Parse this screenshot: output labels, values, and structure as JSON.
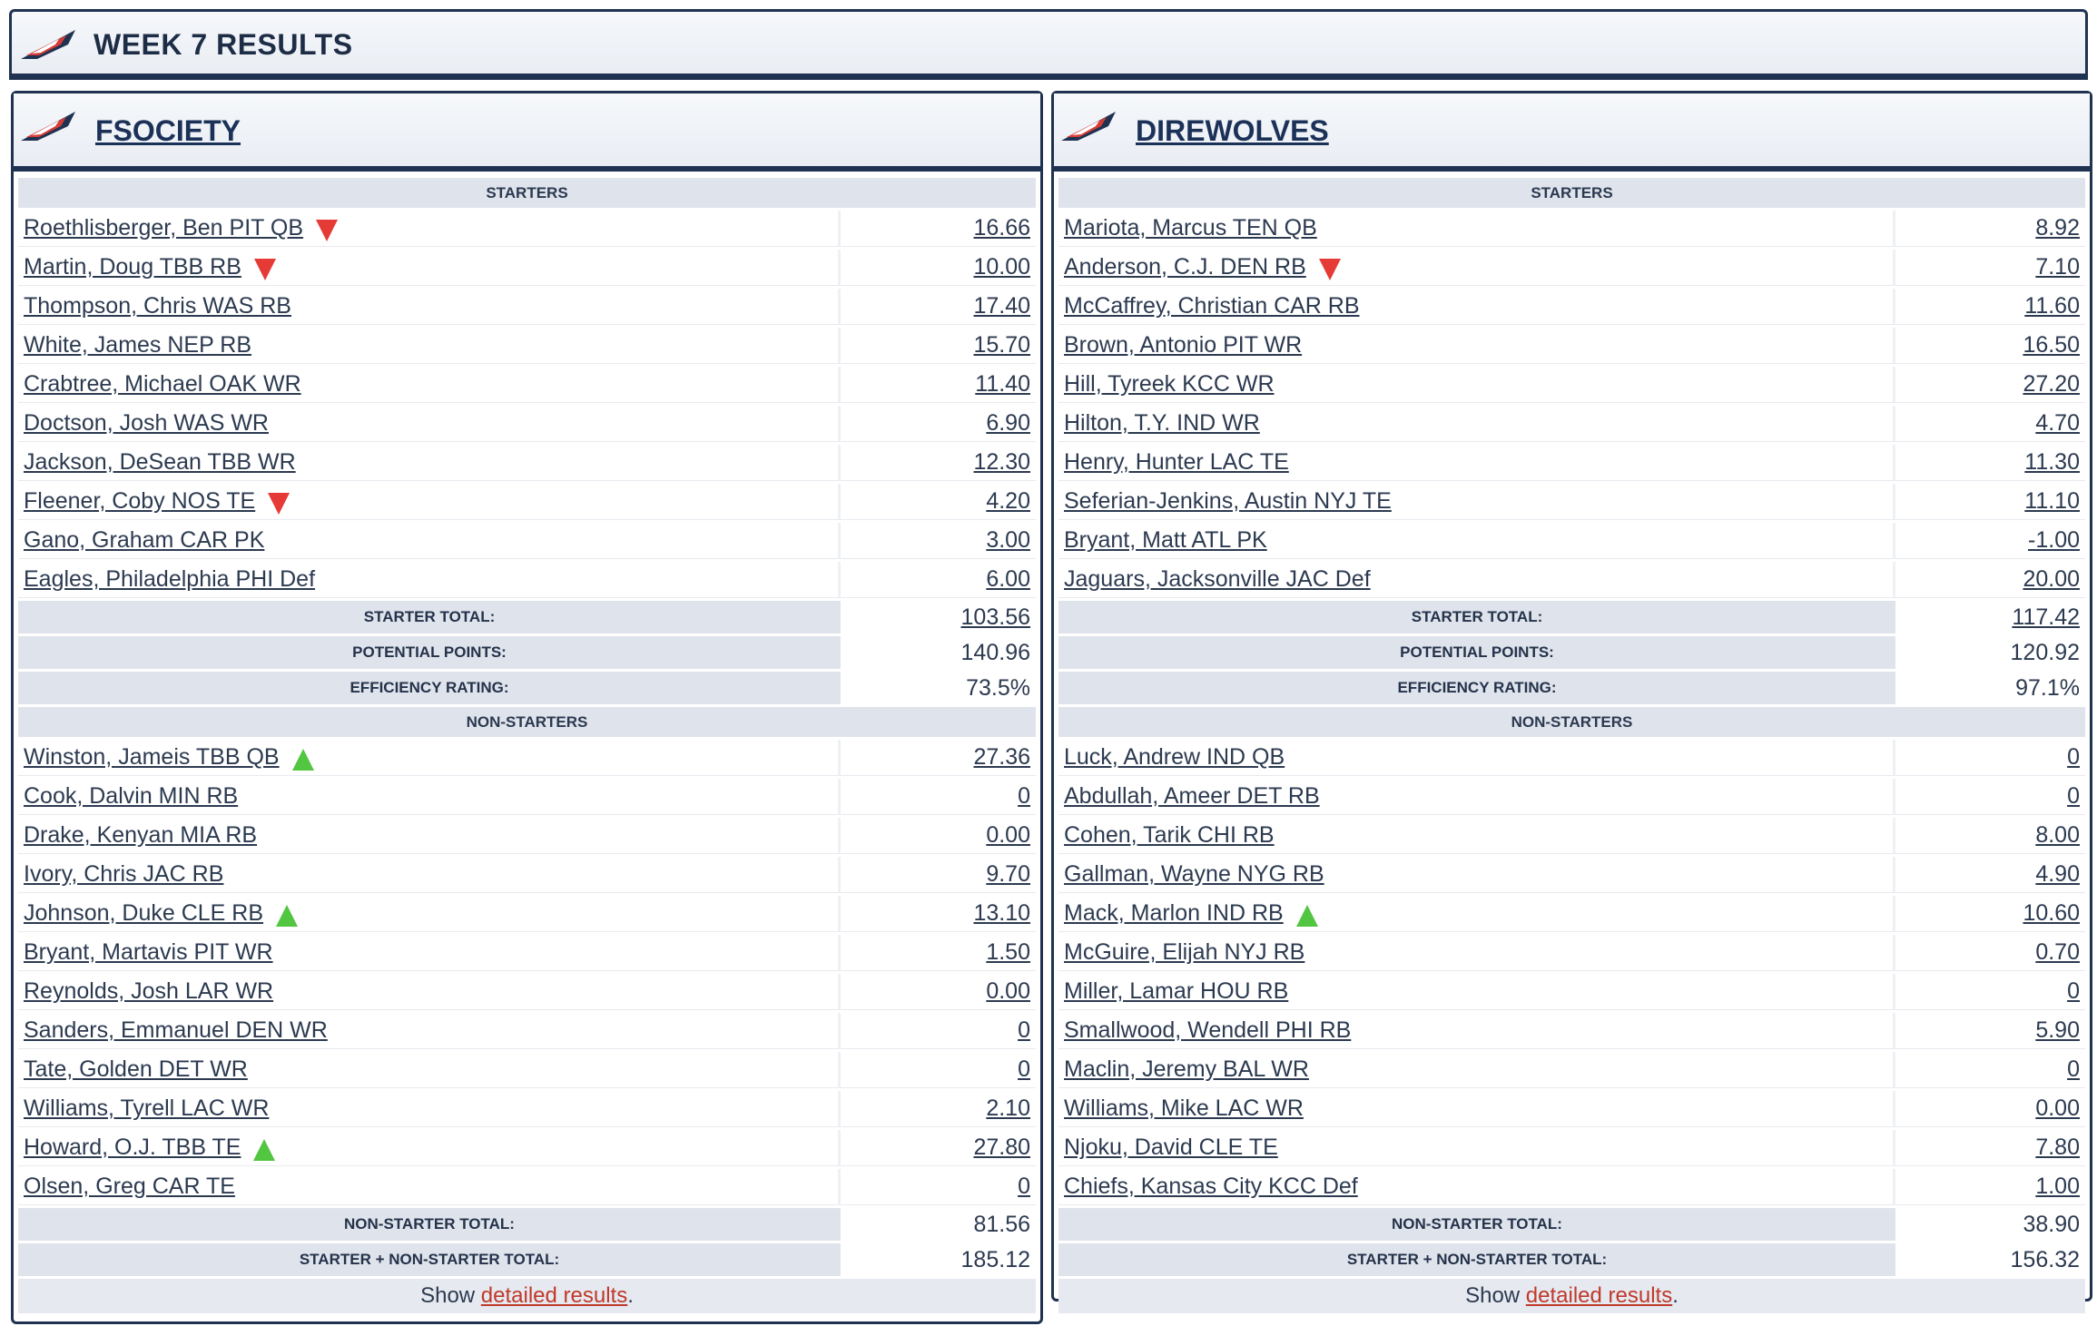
{
  "page": {
    "title": "WEEK 7 RESULTS"
  },
  "colors": {
    "navy": "#1f3252",
    "section_bg": "#dfe4ec",
    "down_arrow": "#e53a35",
    "up_arrow": "#52c640",
    "link_red": "#c0392b"
  },
  "teams": [
    {
      "name": "FSOCIETY",
      "starters_label": "STARTERS",
      "starters": [
        {
          "player": "Roethlisberger, Ben PIT QB",
          "pts": "16.66",
          "arrow": "down"
        },
        {
          "player": "Martin, Doug TBB RB",
          "pts": "10.00",
          "arrow": "down"
        },
        {
          "player": "Thompson, Chris WAS RB",
          "pts": "17.40",
          "arrow": ""
        },
        {
          "player": "White, James NEP RB",
          "pts": "15.70",
          "arrow": ""
        },
        {
          "player": "Crabtree, Michael OAK WR",
          "pts": "11.40",
          "arrow": ""
        },
        {
          "player": "Doctson, Josh WAS WR",
          "pts": "6.90",
          "arrow": ""
        },
        {
          "player": "Jackson, DeSean TBB WR",
          "pts": "12.30",
          "arrow": ""
        },
        {
          "player": "Fleener, Coby NOS TE",
          "pts": "4.20",
          "arrow": "down"
        },
        {
          "player": "Gano, Graham CAR PK",
          "pts": "3.00",
          "arrow": ""
        },
        {
          "player": "Eagles, Philadelphia PHI Def",
          "pts": "6.00",
          "arrow": ""
        }
      ],
      "starter_summary": [
        {
          "label": "STARTER TOTAL:",
          "value": "103.56",
          "link": true
        },
        {
          "label": "POTENTIAL POINTS:",
          "value": "140.96",
          "link": false
        },
        {
          "label": "EFFICIENCY RATING:",
          "value": "73.5%",
          "link": false
        }
      ],
      "nonstarters_label": "NON-STARTERS",
      "nonstarters": [
        {
          "player": "Winston, Jameis TBB QB",
          "pts": "27.36",
          "arrow": "up"
        },
        {
          "player": "Cook, Dalvin MIN RB",
          "pts": "0",
          "arrow": ""
        },
        {
          "player": "Drake, Kenyan MIA RB",
          "pts": "0.00",
          "arrow": ""
        },
        {
          "player": "Ivory, Chris JAC RB",
          "pts": "9.70",
          "arrow": ""
        },
        {
          "player": "Johnson, Duke CLE RB",
          "pts": "13.10",
          "arrow": "up"
        },
        {
          "player": "Bryant, Martavis PIT WR",
          "pts": "1.50",
          "arrow": ""
        },
        {
          "player": "Reynolds, Josh LAR WR",
          "pts": "0.00",
          "arrow": ""
        },
        {
          "player": "Sanders, Emmanuel DEN WR",
          "pts": "0",
          "arrow": ""
        },
        {
          "player": "Tate, Golden DET WR",
          "pts": "0",
          "arrow": ""
        },
        {
          "player": "Williams, Tyrell LAC WR",
          "pts": "2.10",
          "arrow": ""
        },
        {
          "player": "Howard, O.J. TBB TE",
          "pts": "27.80",
          "arrow": "up"
        },
        {
          "player": "Olsen, Greg CAR TE",
          "pts": "0",
          "arrow": ""
        }
      ],
      "nonstarter_summary": [
        {
          "label": "NON-STARTER TOTAL:",
          "value": "81.56",
          "link": false
        },
        {
          "label": "STARTER + NON-STARTER TOTAL:",
          "value": "185.12",
          "link": false
        }
      ],
      "footer": {
        "prefix": "Show ",
        "link": "detailed results",
        "suffix": "."
      }
    },
    {
      "name": "DIREWOLVES",
      "starters_label": "STARTERS",
      "starters": [
        {
          "player": "Mariota, Marcus TEN QB",
          "pts": "8.92",
          "arrow": ""
        },
        {
          "player": "Anderson, C.J. DEN RB",
          "pts": "7.10",
          "arrow": "down"
        },
        {
          "player": "McCaffrey, Christian CAR RB",
          "pts": "11.60",
          "arrow": ""
        },
        {
          "player": "Brown, Antonio PIT WR",
          "pts": "16.50",
          "arrow": ""
        },
        {
          "player": "Hill, Tyreek KCC WR",
          "pts": "27.20",
          "arrow": ""
        },
        {
          "player": "Hilton, T.Y. IND WR",
          "pts": "4.70",
          "arrow": ""
        },
        {
          "player": "Henry, Hunter LAC TE",
          "pts": "11.30",
          "arrow": ""
        },
        {
          "player": "Seferian-Jenkins, Austin NYJ TE",
          "pts": "11.10",
          "arrow": ""
        },
        {
          "player": "Bryant, Matt ATL PK",
          "pts": "-1.00",
          "arrow": ""
        },
        {
          "player": "Jaguars, Jacksonville JAC Def",
          "pts": "20.00",
          "arrow": ""
        }
      ],
      "starter_summary": [
        {
          "label": "STARTER TOTAL:",
          "value": "117.42",
          "link": true
        },
        {
          "label": "POTENTIAL POINTS:",
          "value": "120.92",
          "link": false
        },
        {
          "label": "EFFICIENCY RATING:",
          "value": "97.1%",
          "link": false
        }
      ],
      "nonstarters_label": "NON-STARTERS",
      "nonstarters": [
        {
          "player": "Luck, Andrew IND QB",
          "pts": "0",
          "arrow": ""
        },
        {
          "player": "Abdullah, Ameer DET RB",
          "pts": "0",
          "arrow": ""
        },
        {
          "player": "Cohen, Tarik CHI RB",
          "pts": "8.00",
          "arrow": ""
        },
        {
          "player": "Gallman, Wayne NYG RB",
          "pts": "4.90",
          "arrow": ""
        },
        {
          "player": "Mack, Marlon IND RB",
          "pts": "10.60",
          "arrow": "up"
        },
        {
          "player": "McGuire, Elijah NYJ RB",
          "pts": "0.70",
          "arrow": ""
        },
        {
          "player": "Miller, Lamar HOU RB",
          "pts": "0",
          "arrow": ""
        },
        {
          "player": "Smallwood, Wendell PHI RB",
          "pts": "5.90",
          "arrow": ""
        },
        {
          "player": "Maclin, Jeremy BAL WR",
          "pts": "0",
          "arrow": ""
        },
        {
          "player": "Williams, Mike LAC WR",
          "pts": "0.00",
          "arrow": ""
        },
        {
          "player": "Njoku, David CLE TE",
          "pts": "7.80",
          "arrow": ""
        },
        {
          "player": "Chiefs, Kansas City KCC Def",
          "pts": "1.00",
          "arrow": ""
        }
      ],
      "nonstarter_summary": [
        {
          "label": "NON-STARTER TOTAL:",
          "value": "38.90",
          "link": false
        },
        {
          "label": "STARTER + NON-STARTER TOTAL:",
          "value": "156.32",
          "link": false
        }
      ],
      "footer": {
        "prefix": "Show ",
        "link": "detailed results",
        "suffix": "."
      }
    }
  ]
}
